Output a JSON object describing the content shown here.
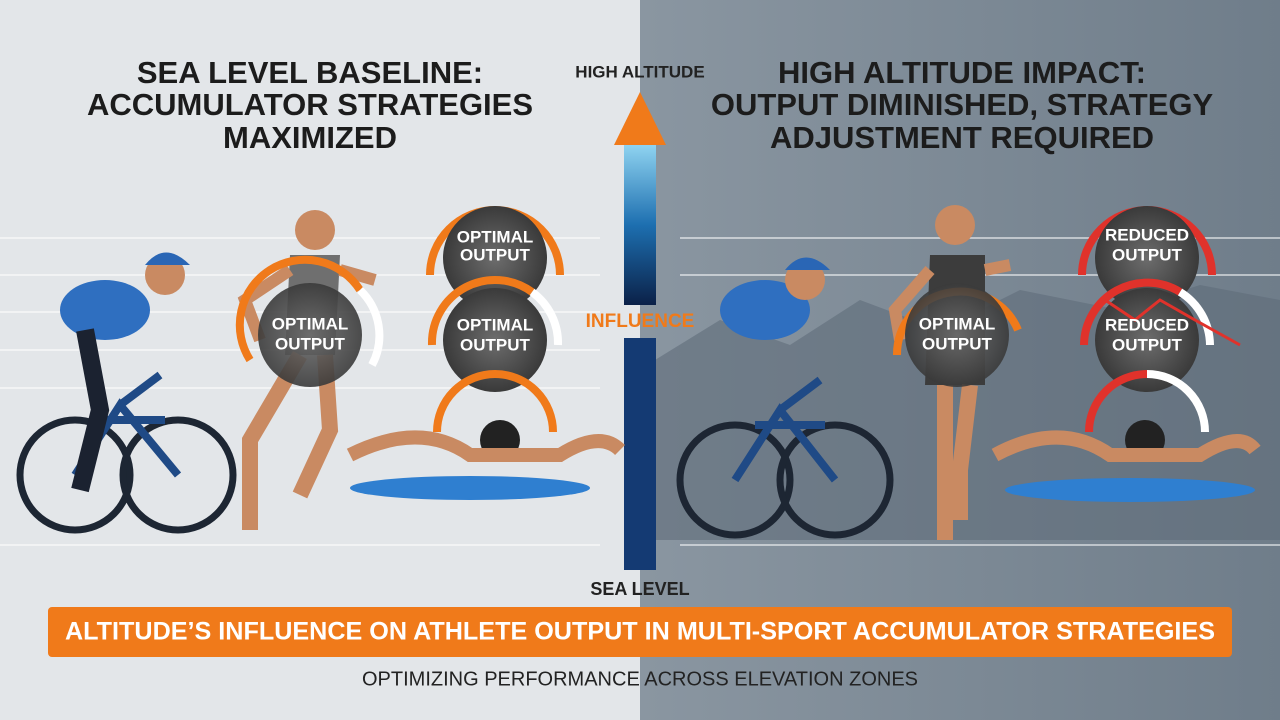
{
  "left_panel": {
    "title_lines": [
      "SEA LEVEL BASELINE:",
      "ACCUMULATOR STRATEGIES",
      "MAXIMIZED"
    ],
    "gauges": [
      {
        "label_lines": [
          "OPTIMAL",
          "OUTPUT"
        ]
      },
      {
        "label_lines": [
          "OPTIMAL",
          "OUTPUT"
        ]
      },
      {
        "label_lines": [
          "OPTIMAL",
          "OUTPUT"
        ]
      }
    ]
  },
  "right_panel": {
    "title_lines": [
      "HIGH ALTITUDE IMPACT:",
      "OUTPUT DIMINISHED, STRATEGY",
      "ADJUSTMENT REQUIRED"
    ],
    "gauges": [
      {
        "label_lines": [
          "OPTIMAL",
          "OUTPUT"
        ]
      },
      {
        "label_lines": [
          "REDUCED",
          "OUTPUT"
        ]
      },
      {
        "label_lines": [
          "REDUCED",
          "OUTPUT"
        ]
      }
    ]
  },
  "altitude_axis": {
    "top_label": "HIGH ALTITUDE",
    "middle_label": "INFLUENCE",
    "bottom_label": "SEA LEVEL"
  },
  "footer": {
    "banner": "ALTITUDE’S INFLUENCE ON ATHLETE OUTPUT IN MULTI-SPORT ACCUMULATOR STRATEGIES",
    "subtitle": "OPTIMIZING PERFORMANCE ACROSS ELEVATION ZONES"
  }
}
